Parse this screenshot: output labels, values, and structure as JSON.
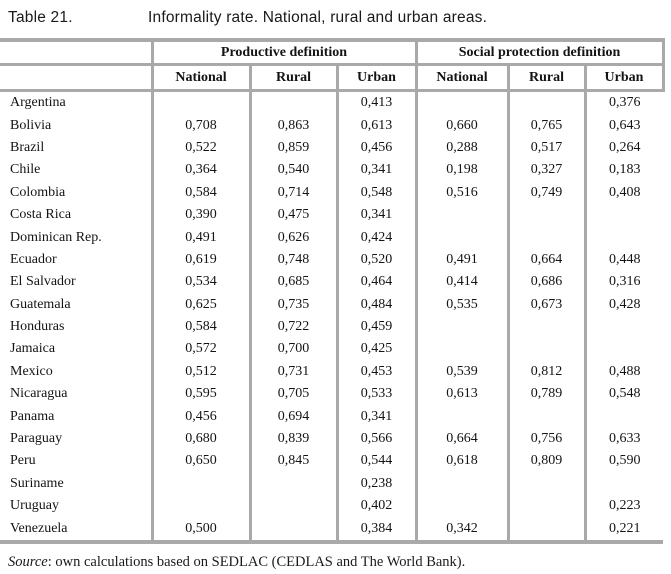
{
  "title": {
    "label": "Table 21.",
    "text": "Informality rate. National, rural and urban areas."
  },
  "table": {
    "groups": [
      {
        "label": "Productive definition"
      },
      {
        "label": "Social protection definition"
      }
    ],
    "columns": [
      "National",
      "Rural",
      "Urban",
      "National",
      "Rural",
      "Urban"
    ],
    "rows": [
      {
        "country": "Argentina",
        "values": [
          "",
          "",
          "0,413",
          "",
          "",
          "0,376"
        ]
      },
      {
        "country": "Bolivia",
        "values": [
          "0,708",
          "0,863",
          "0,613",
          "0,660",
          "0,765",
          "0,643"
        ]
      },
      {
        "country": "Brazil",
        "values": [
          "0,522",
          "0,859",
          "0,456",
          "0,288",
          "0,517",
          "0,264"
        ]
      },
      {
        "country": "Chile",
        "values": [
          "0,364",
          "0,540",
          "0,341",
          "0,198",
          "0,327",
          "0,183"
        ]
      },
      {
        "country": "Colombia",
        "values": [
          "0,584",
          "0,714",
          "0,548",
          "0,516",
          "0,749",
          "0,408"
        ]
      },
      {
        "country": "Costa Rica",
        "values": [
          "0,390",
          "0,475",
          "0,341",
          "",
          "",
          ""
        ]
      },
      {
        "country": "Dominican Rep.",
        "values": [
          "0,491",
          "0,626",
          "0,424",
          "",
          "",
          ""
        ]
      },
      {
        "country": "Ecuador",
        "values": [
          "0,619",
          "0,748",
          "0,520",
          "0,491",
          "0,664",
          "0,448"
        ]
      },
      {
        "country": "El Salvador",
        "values": [
          "0,534",
          "0,685",
          "0,464",
          "0,414",
          "0,686",
          "0,316"
        ]
      },
      {
        "country": "Guatemala",
        "values": [
          "0,625",
          "0,735",
          "0,484",
          "0,535",
          "0,673",
          "0,428"
        ]
      },
      {
        "country": "Honduras",
        "values": [
          "0,584",
          "0,722",
          "0,459",
          "",
          "",
          ""
        ]
      },
      {
        "country": "Jamaica",
        "values": [
          "0,572",
          "0,700",
          "0,425",
          "",
          "",
          ""
        ]
      },
      {
        "country": "Mexico",
        "values": [
          "0,512",
          "0,731",
          "0,453",
          "0,539",
          "0,812",
          "0,488"
        ]
      },
      {
        "country": "Nicaragua",
        "values": [
          "0,595",
          "0,705",
          "0,533",
          "0,613",
          "0,789",
          "0,548"
        ]
      },
      {
        "country": "Panama",
        "values": [
          "0,456",
          "0,694",
          "0,341",
          "",
          "",
          ""
        ]
      },
      {
        "country": "Paraguay",
        "values": [
          "0,680",
          "0,839",
          "0,566",
          "0,664",
          "0,756",
          "0,633"
        ]
      },
      {
        "country": "Peru",
        "values": [
          "0,650",
          "0,845",
          "0,544",
          "0,618",
          "0,809",
          "0,590"
        ]
      },
      {
        "country": "Suriname",
        "values": [
          "",
          "",
          "0,238",
          "",
          "",
          ""
        ]
      },
      {
        "country": "Uruguay",
        "values": [
          "",
          "",
          "0,402",
          "",
          "",
          "0,223"
        ]
      },
      {
        "country": "Venezuela",
        "values": [
          "0,500",
          "",
          "0,384",
          "0,342",
          "",
          "0,221"
        ]
      }
    ]
  },
  "source": {
    "prefix": "Source",
    "text": ": own calculations based on SEDLAC (CEDLAS and The World Bank)."
  },
  "colors": {
    "border": "#a9a9a9",
    "text": "#141414",
    "background": "#ffffff"
  }
}
